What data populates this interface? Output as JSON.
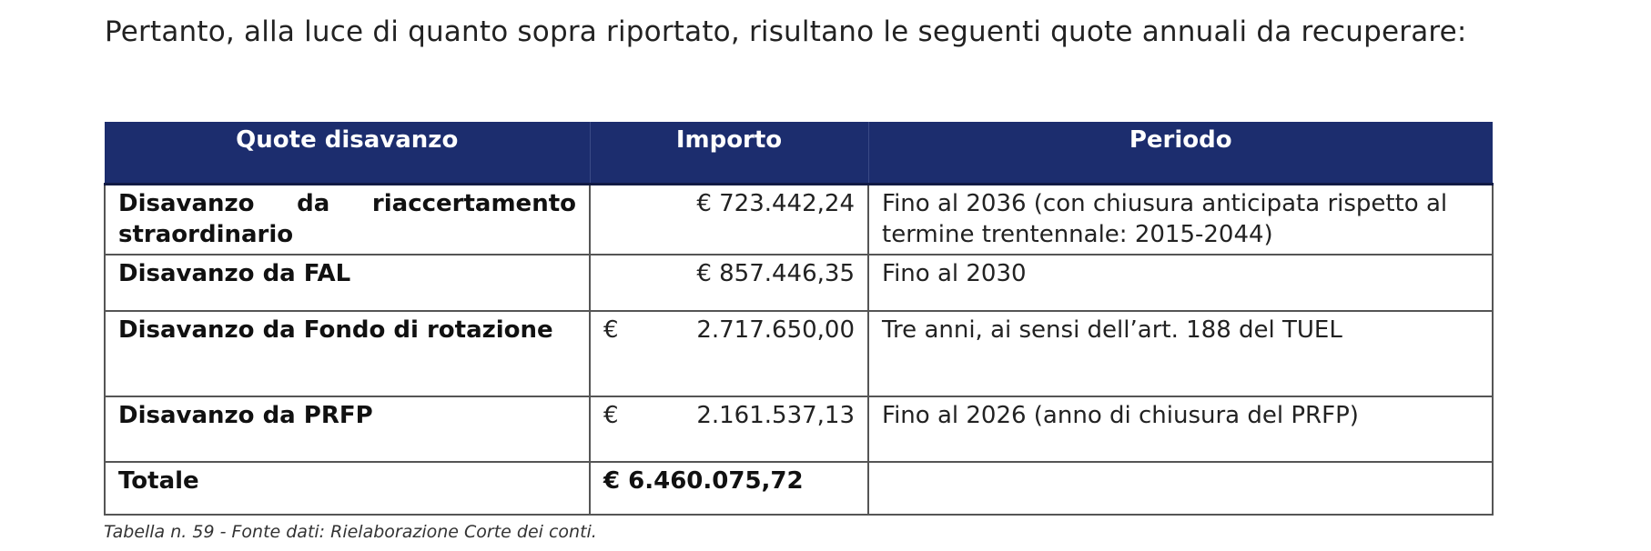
{
  "intro": "Pertanto, alla luce di quanto sopra riportato, risultano le seguenti quote annuali da recuperare:",
  "table": {
    "headers": [
      "Quote disavanzo",
      "Importo",
      "Periodo"
    ],
    "rows": [
      {
        "label": "Disavanzo da riaccertamento straordinario",
        "currency": "€",
        "amount": "723.442,24",
        "period": "Fino al 2036 (con chiusura anticipata rispetto al termine trentennale: 2015-2044)"
      },
      {
        "label": "Disavanzo da FAL",
        "currency": "€",
        "amount": "857.446,35",
        "period": "Fino al 2030"
      },
      {
        "label": "Disavanzo da Fondo di rotazione",
        "currency": "€",
        "amount": "2.717.650,00",
        "period": "Tre anni, ai sensi dell’art. 188 del TUEL"
      },
      {
        "label": "Disavanzo da PRFP",
        "currency": "€",
        "amount": "2.161.537,13",
        "period": "Fino al 2026 (anno di chiusura del PRFP)"
      },
      {
        "label": "Totale",
        "currency": "€",
        "amount": "6.460.075,72",
        "period": ""
      }
    ]
  },
  "caption": "Tabella n. 59 - Fonte dati: Rielaborazione Corte dei conti."
}
